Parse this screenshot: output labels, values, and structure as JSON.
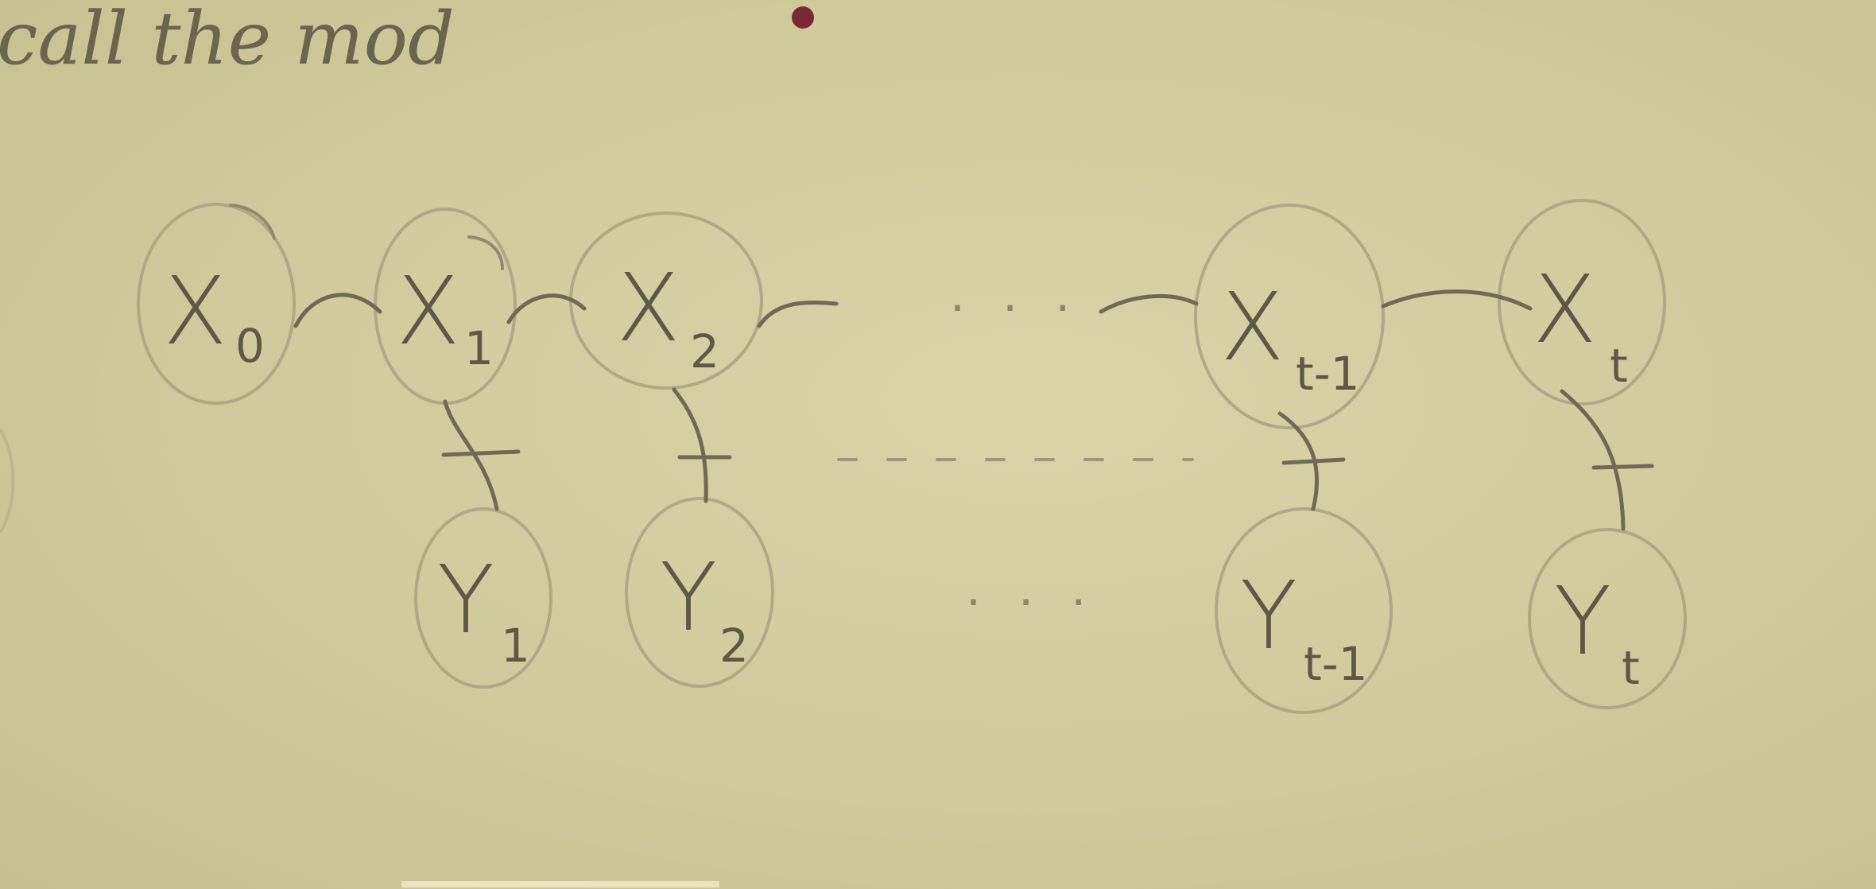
{
  "caption": "call the mod",
  "colors": {
    "paper": "#d3cda0",
    "ink": "#6f6a55",
    "ring": "#a8a284"
  },
  "hidden_nodes": [
    {
      "main": "X",
      "sub": "0"
    },
    {
      "main": "X",
      "sub": "1"
    },
    {
      "main": "X",
      "sub": "2"
    },
    {
      "main": "X",
      "sub": "t-1"
    },
    {
      "main": "X",
      "sub": "t"
    }
  ],
  "observed_nodes": [
    {
      "main": "Y",
      "sub": "1"
    },
    {
      "main": "Y",
      "sub": "2"
    },
    {
      "main": "Y",
      "sub": "t-1"
    },
    {
      "main": "Y",
      "sub": "t"
    }
  ],
  "ellipsis_top": "· · ·",
  "ellipsis_bottom": "· · ·"
}
